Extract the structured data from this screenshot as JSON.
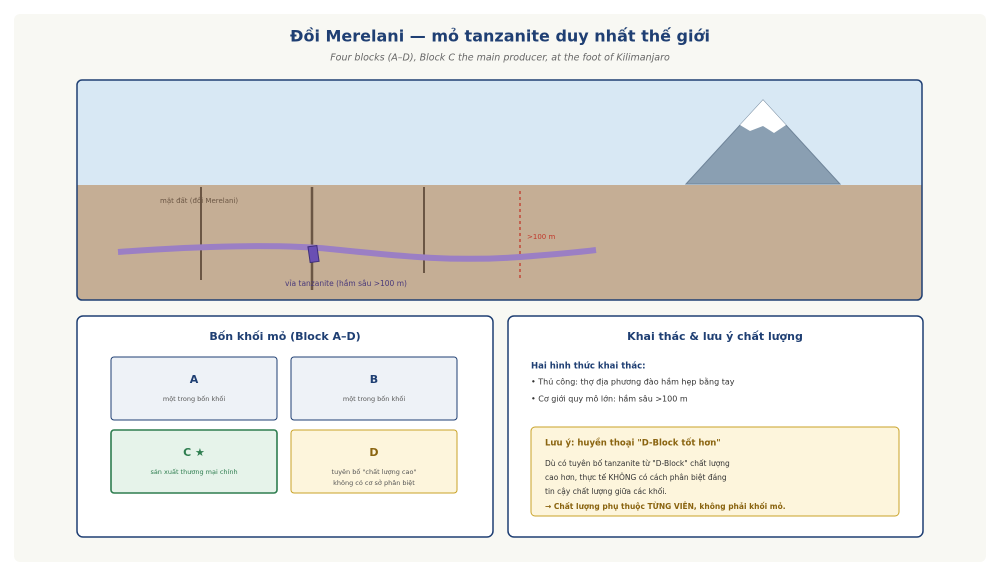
{
  "header": {
    "title": "Đồi Merelani — mỏ tanzanite duy nhất thế giới",
    "subtitle": "Four blocks (A–D), Block C the main producer, at the foot of Kilimanjaro"
  },
  "cross_section": {
    "surface_label": "mặt đất (đồi Merelani)",
    "depth_label": ">100 m",
    "seam_label": "vỉa tanzanite (hầm sâu >100 m)"
  },
  "blocks_panel": {
    "title": "Bốn khối mỏ (Block A–D)",
    "blocks": [
      {
        "name": "A",
        "note": [
          "một trong bốn khối"
        ]
      },
      {
        "name": "B",
        "note": [
          "một trong bốn khối"
        ]
      },
      {
        "name": "C ★",
        "note": [
          "sản xuất thương mại chính"
        ]
      },
      {
        "name": "D",
        "note": [
          "tuyên bố \"chất lượng cao\"",
          "không có cơ sở phân biệt"
        ]
      }
    ]
  },
  "mining_panel": {
    "title": "Khai thác & lưu ý chất lượng",
    "methods_heading": "Hai hình thức khai thác:",
    "methods": [
      "• Thủ công: thợ địa phương đào hầm hẹp bằng tay",
      "• Cơ giới quy mô lớn: hầm sâu >100 m"
    ],
    "note": {
      "title": "Lưu ý: huyền thoại \"D-Block tốt hơn\"",
      "lines": [
        "Dù có tuyên bố tanzanite từ \"D-Block\" chất lượng",
        "cao hơn, thực tế KHÔNG có cách phân biệt đáng",
        "tin cậy chất lượng giữa các khối."
      ],
      "conclusion": "→ Chất lượng phụ thuộc TỪNG VIÊN, không phải khối mỏ."
    }
  }
}
